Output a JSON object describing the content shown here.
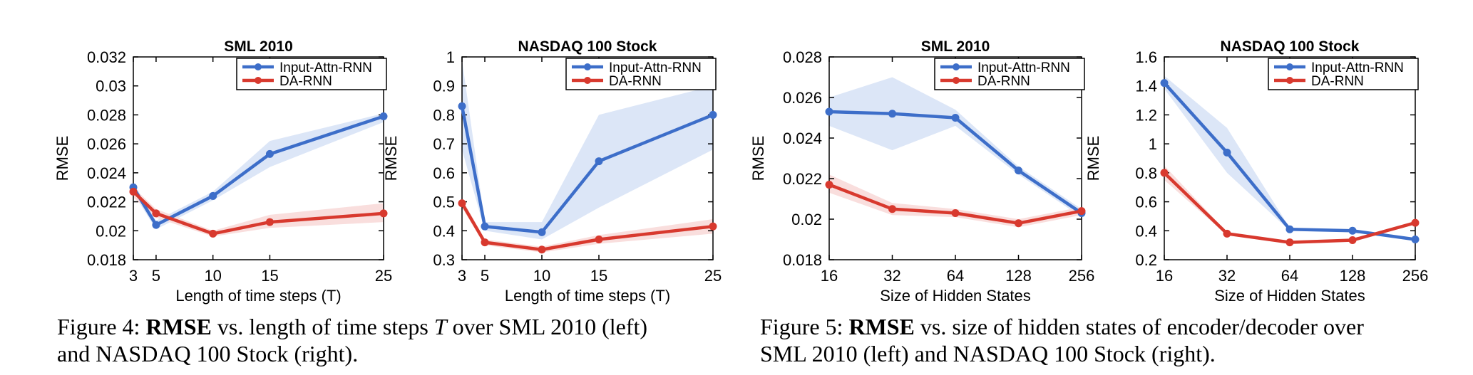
{
  "chart_data": [
    {
      "type": "line",
      "title": "SML 2010",
      "xlabel": "Length of time steps (T)",
      "ylabel": "RMSE",
      "x": [
        3,
        5,
        10,
        15,
        25
      ],
      "xticks": [
        "3",
        "5",
        "10",
        "15",
        "25"
      ],
      "xlim": [
        3,
        25
      ],
      "ylim": [
        0.018,
        0.032
      ],
      "yticks": [
        "0.018",
        "0.02",
        "0.022",
        "0.024",
        "0.026",
        "0.028",
        "0.03",
        "0.032"
      ],
      "legend": "top-right",
      "grid": false,
      "series": [
        {
          "name": "Input-Attn-RNN",
          "color": "#3D6EC9",
          "band_color": "#DCE6F7",
          "values": [
            0.023,
            0.0204,
            0.0224,
            0.0253,
            0.0279
          ],
          "band_low": [
            0.0226,
            0.0201,
            0.0221,
            0.0244,
            0.0275
          ],
          "band_high": [
            0.0233,
            0.0207,
            0.0227,
            0.0262,
            0.0281
          ]
        },
        {
          "name": "DA-RNN",
          "color": "#D8392E",
          "band_color": "#F9DEDD",
          "values": [
            0.0227,
            0.0212,
            0.0198,
            0.0206,
            0.0212
          ],
          "band_low": [
            0.0223,
            0.0209,
            0.0196,
            0.0202,
            0.0206
          ],
          "band_high": [
            0.023,
            0.0215,
            0.02,
            0.0211,
            0.0219
          ]
        }
      ]
    },
    {
      "type": "line",
      "title": "NASDAQ 100 Stock",
      "xlabel": "Length of time steps (T)",
      "ylabel": "RMSE",
      "x": [
        3,
        5,
        10,
        15,
        25
      ],
      "xticks": [
        "3",
        "5",
        "10",
        "15",
        "25"
      ],
      "xlim": [
        3,
        25
      ],
      "ylim": [
        0.3,
        1
      ],
      "yticks": [
        "0.3",
        "0.4",
        "0.5",
        "0.6",
        "0.7",
        "0.8",
        "0.9",
        "1"
      ],
      "legend": "top-right",
      "grid": false,
      "series": [
        {
          "name": "Input-Attn-RNN",
          "color": "#3D6EC9",
          "band_color": "#DCE6F7",
          "values": [
            0.83,
            0.415,
            0.395,
            0.64,
            0.8
          ],
          "band_low": [
            0.68,
            0.4,
            0.37,
            0.48,
            0.68
          ],
          "band_high": [
            0.99,
            0.43,
            0.43,
            0.8,
            0.9
          ]
        },
        {
          "name": "DA-RNN",
          "color": "#D8392E",
          "band_color": "#F9DEDD",
          "values": [
            0.495,
            0.36,
            0.335,
            0.37,
            0.415
          ],
          "band_low": [
            0.48,
            0.35,
            0.325,
            0.355,
            0.39
          ],
          "band_high": [
            0.51,
            0.37,
            0.345,
            0.385,
            0.44
          ]
        }
      ]
    },
    {
      "type": "line",
      "title": "SML 2010",
      "xlabel": "Size of Hidden States",
      "ylabel": "RMSE",
      "x": [
        16,
        32,
        64,
        128,
        256
      ],
      "xticks": [
        "16",
        "32",
        "64",
        "128",
        "256"
      ],
      "xscale": "log2",
      "xlim": [
        16,
        256
      ],
      "ylim": [
        0.018,
        0.028
      ],
      "yticks": [
        "0.018",
        "0.02",
        "0.022",
        "0.024",
        "0.026",
        "0.028"
      ],
      "legend": "top-right",
      "grid": false,
      "series": [
        {
          "name": "Input-Attn-RNN",
          "color": "#3D6EC9",
          "band_color": "#DCE6F7",
          "values": [
            0.0253,
            0.0252,
            0.025,
            0.0224,
            0.0203
          ],
          "band_low": [
            0.0246,
            0.0234,
            0.0246,
            0.0222,
            0.0201
          ],
          "band_high": [
            0.026,
            0.027,
            0.0254,
            0.0226,
            0.0205
          ]
        },
        {
          "name": "DA-RNN",
          "color": "#D8392E",
          "band_color": "#F9DEDD",
          "values": [
            0.0217,
            0.0205,
            0.0203,
            0.0198,
            0.0204
          ],
          "band_low": [
            0.0213,
            0.0202,
            0.0201,
            0.0196,
            0.0202
          ],
          "band_high": [
            0.0222,
            0.0208,
            0.0205,
            0.02,
            0.0206
          ]
        }
      ]
    },
    {
      "type": "line",
      "title": "NASDAQ 100 Stock",
      "xlabel": "Size of Hidden States",
      "ylabel": "RMSE",
      "x": [
        16,
        32,
        64,
        128,
        256
      ],
      "xticks": [
        "16",
        "32",
        "64",
        "128",
        "256"
      ],
      "xscale": "log2",
      "xlim": [
        16,
        256
      ],
      "ylim": [
        0.2,
        1.6
      ],
      "yticks": [
        "0.2",
        "0.4",
        "0.6",
        "0.8",
        "1",
        "1.2",
        "1.4",
        "1.6"
      ],
      "legend": "top-right",
      "grid": false,
      "series": [
        {
          "name": "Input-Attn-RNN",
          "color": "#3D6EC9",
          "band_color": "#DCE6F7",
          "values": [
            1.42,
            0.94,
            0.41,
            0.4,
            0.34
          ],
          "band_low": [
            1.38,
            0.8,
            0.4,
            0.39,
            0.33
          ],
          "band_high": [
            1.47,
            1.11,
            0.42,
            0.41,
            0.35
          ]
        },
        {
          "name": "DA-RNN",
          "color": "#D8392E",
          "band_color": "#F9DEDD",
          "values": [
            0.8,
            0.38,
            0.32,
            0.335,
            0.455
          ],
          "band_low": [
            0.75,
            0.37,
            0.31,
            0.325,
            0.445
          ],
          "band_high": [
            0.85,
            0.39,
            0.33,
            0.345,
            0.465
          ]
        }
      ]
    }
  ],
  "captions": [
    {
      "label": "Figure 4:",
      "bold": "RMSE",
      "rest1": "vs. length of time steps",
      "var": "T",
      "rest2": "over SML 2010 (left)",
      "line2": "and NASDAQ 100 Stock (right)."
    },
    {
      "label": "Figure 5:",
      "bold": "RMSE",
      "rest1": "vs. size of hidden states of encoder/decoder over",
      "var": "",
      "rest2": "",
      "line2": "SML 2010 (left) and NASDAQ 100 Stock (right)."
    }
  ]
}
